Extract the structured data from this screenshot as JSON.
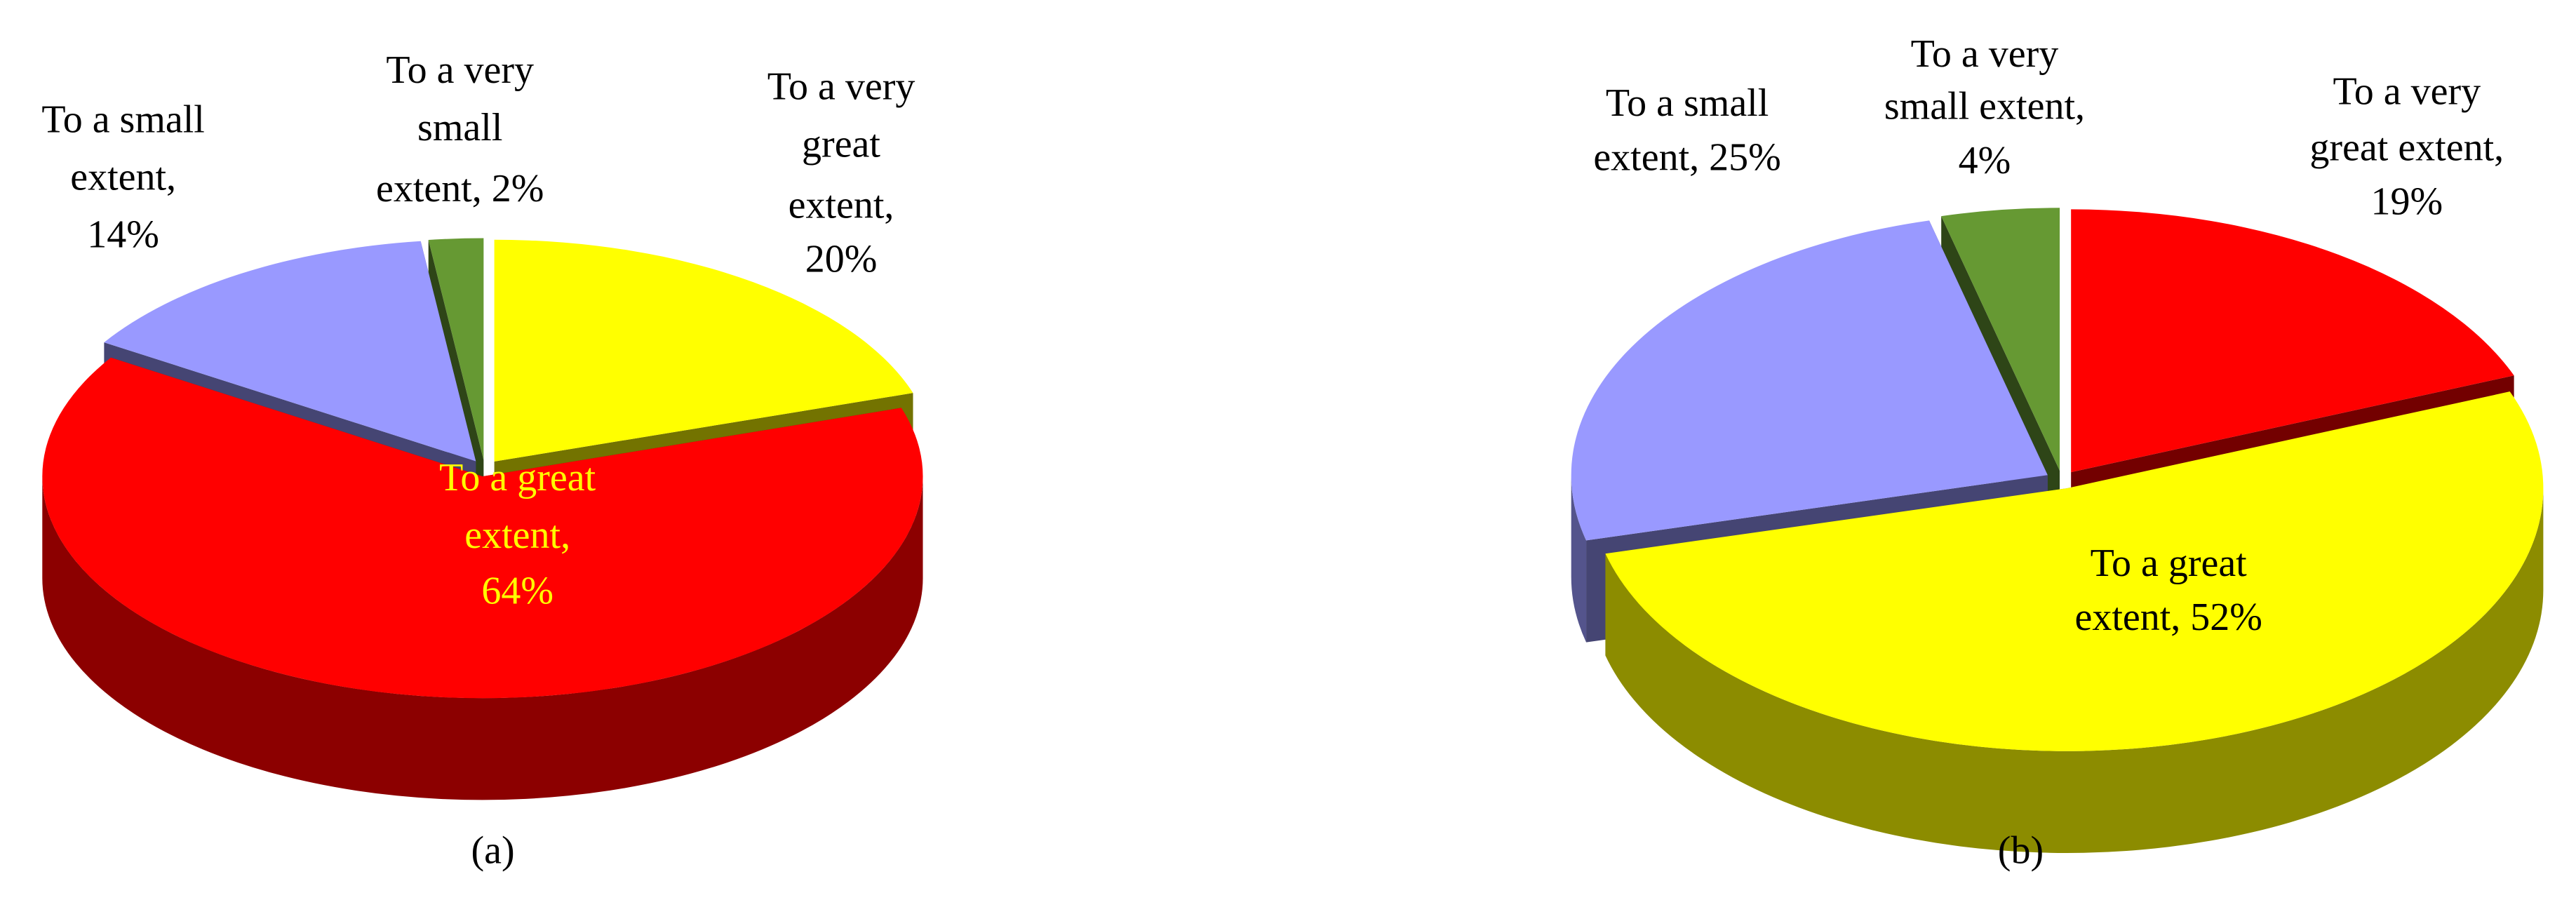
{
  "chart_data": [
    {
      "type": "pie3d",
      "caption": "(a)",
      "categories": [
        "To a very great extent",
        "To a great extent",
        "To a small extent",
        "To a very small extent"
      ],
      "values": [
        20,
        64,
        14,
        2
      ],
      "labels": [
        [
          "To a very",
          "great",
          "extent,",
          "20%"
        ],
        [
          "To a great",
          "extent,",
          "64%"
        ],
        [
          "To a small",
          "extent,",
          "14%"
        ],
        [
          "To a very",
          "small",
          "extent, 2%"
        ]
      ],
      "colors": [
        "#ffff00",
        "#ff0000",
        "#9999ff",
        "#669933"
      ],
      "label_colors": [
        "#000000",
        "#ffff00",
        "#000000",
        "#000000"
      ]
    },
    {
      "type": "pie3d",
      "caption": "(b)",
      "categories": [
        "To a very great extent",
        "To a great extent",
        "To a small extent",
        "To a very small extent"
      ],
      "values": [
        19,
        52,
        25,
        4
      ],
      "labels": [
        [
          "To a very",
          "great extent,",
          "19%"
        ],
        [
          "To a great",
          "extent, 52%"
        ],
        [
          "To a small",
          "extent, 25%"
        ],
        [
          "To a very",
          "small extent,",
          "4%"
        ]
      ],
      "colors": [
        "#ff0000",
        "#ffff00",
        "#9999ff",
        "#669933"
      ],
      "label_colors": [
        "#000000",
        "#000000",
        "#000000",
        "#000000"
      ]
    }
  ]
}
